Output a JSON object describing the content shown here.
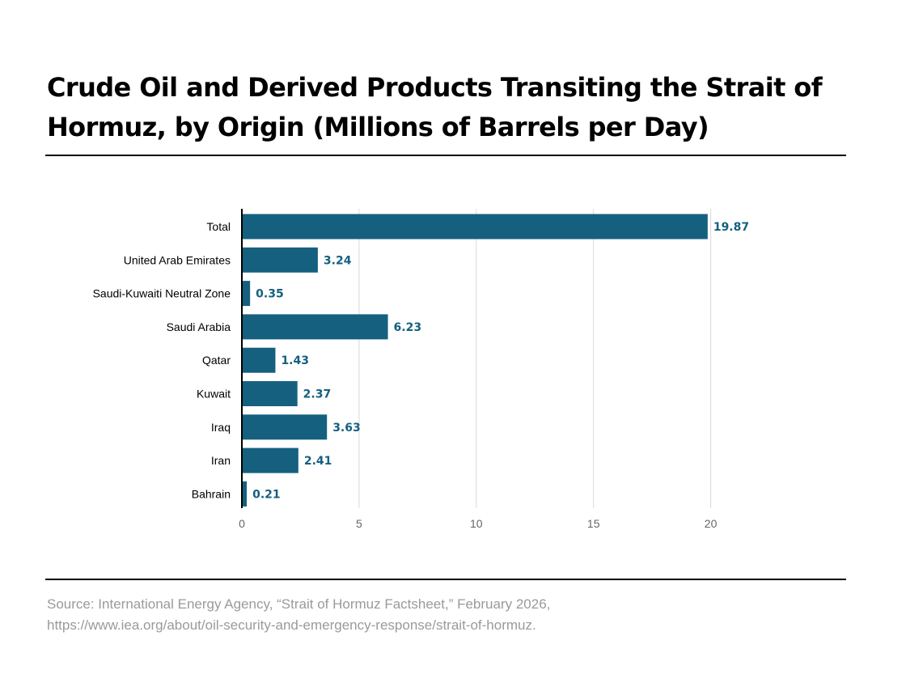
{
  "title": "Crude Oil and Derived Products Transiting the Strait of Hormuz, by Origin (Millions of Barrels per Day)",
  "source": {
    "line1": "Source: International Energy Agency, “Strait of Hormuz Factsheet,” February 2026,",
    "line2": "https://www.iea.org/about/oil-security-and-emergency-response/strait-of-hormuz."
  },
  "colors": {
    "bar": "#15607f",
    "value_label": "#15607f",
    "grid": "#d9d9d9",
    "axis": "#000000",
    "rule": "#000000",
    "source_text": "#9a9a9a"
  },
  "chart_data": {
    "type": "bar",
    "orientation": "horizontal",
    "title": "",
    "xlabel": "",
    "ylabel": "",
    "categories": [
      "Total",
      "United Arab Emirates",
      "Saudi-Kuwaiti Neutral Zone",
      "Saudi Arabia",
      "Qatar",
      "Kuwait",
      "Iraq",
      "Iran",
      "Bahrain"
    ],
    "values": [
      19.87,
      3.24,
      0.35,
      6.23,
      1.43,
      2.37,
      3.63,
      2.41,
      0.21
    ],
    "value_labels": [
      "19.87",
      "3.24",
      "0.35",
      "6.23",
      "1.43",
      "2.37",
      "3.63",
      "2.41",
      "0.21"
    ],
    "xlim": [
      0,
      25
    ],
    "xticks": [
      0,
      5,
      10,
      15,
      20
    ],
    "grid": true,
    "legend": "none"
  }
}
